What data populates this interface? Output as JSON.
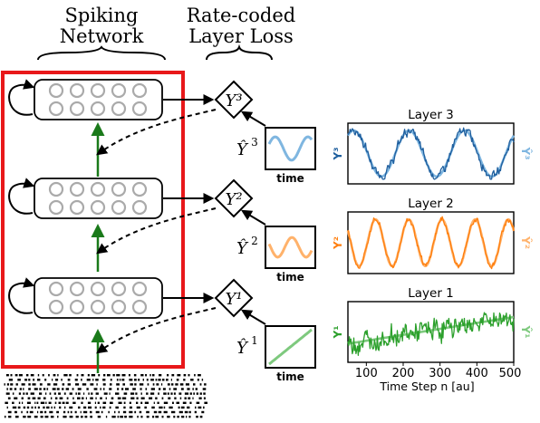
{
  "headers": {
    "spiking_line1": "Spiking",
    "spiking_line2": "Network",
    "rate_line1": "Rate-coded",
    "rate_line2": "Layer Loss"
  },
  "layers": [
    {
      "name": "Layer 3",
      "target_label": "Y³",
      "hat_label": "Ŷ",
      "hat_sup": "3",
      "y_label": "Y³",
      "yhat_label": "Ŷ³",
      "color": "#1f77b4",
      "light": "#7fb6e0"
    },
    {
      "name": "Layer 2",
      "target_label": "Y²",
      "hat_label": "Ŷ",
      "hat_sup": "2",
      "y_label": "Y²",
      "yhat_label": "Ŷ²",
      "color": "#ff7f0e",
      "light": "#ffb26b"
    },
    {
      "name": "Layer 1",
      "target_label": "Y¹",
      "hat_label": "Ŷ",
      "hat_sup": "1",
      "y_label": "Y¹",
      "yhat_label": "Ŷ¹",
      "color": "#2ca02c",
      "light": "#7ec97e"
    }
  ],
  "mini_axis_label": "time",
  "colors": {
    "frame": "#e8181a",
    "feedforward": "#1a7a1a",
    "neuron": "#aaaaaa"
  },
  "chart_data": [
    {
      "type": "line",
      "title": "Layer 3",
      "series": [
        {
          "name": "Y³",
          "kind": "sine",
          "periods": 3,
          "noise": 0.08,
          "color": "#1f5f9e"
        },
        {
          "name": "Ŷ³",
          "kind": "sine",
          "periods": 3,
          "noise": 0,
          "color": "#7fb6e0"
        }
      ],
      "x_range": [
        50,
        500
      ],
      "xticks": []
    },
    {
      "type": "line",
      "title": "Layer 2",
      "series": [
        {
          "name": "Y²",
          "kind": "sine",
          "periods": 5,
          "noise": 0.05,
          "color": "#ff7f0e"
        },
        {
          "name": "Ŷ²",
          "kind": "sine",
          "periods": 5,
          "noise": 0,
          "color": "#ffb26b"
        }
      ],
      "x_range": [
        50,
        500
      ],
      "xticks": []
    },
    {
      "type": "line",
      "title": "Layer 1",
      "series": [
        {
          "name": "Y¹",
          "kind": "ramp",
          "noise": 0.18,
          "color": "#2ca02c"
        },
        {
          "name": "Ŷ¹",
          "kind": "ramp",
          "noise": 0,
          "color": "#7ec97e"
        }
      ],
      "x_range": [
        50,
        500
      ],
      "xticks": [
        100,
        200,
        300,
        400,
        500
      ],
      "xlabel": "Time Step n [au]"
    }
  ]
}
